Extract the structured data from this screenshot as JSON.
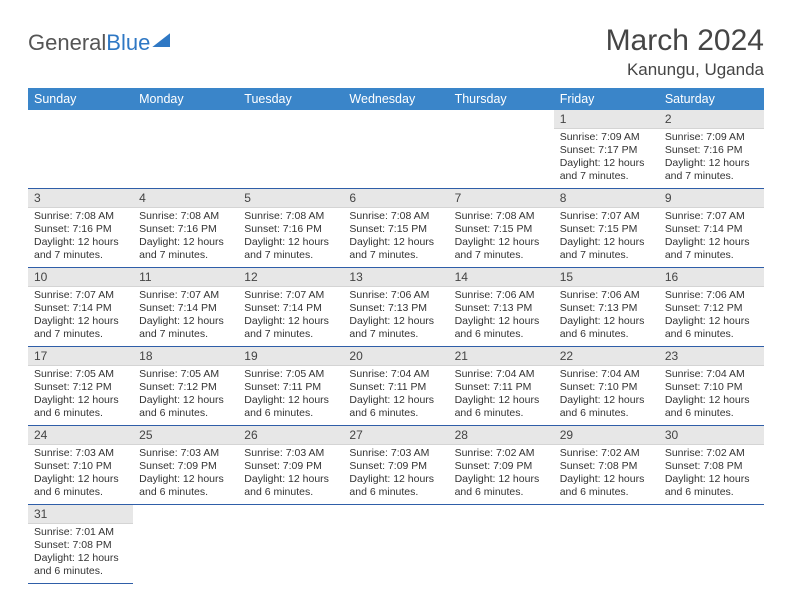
{
  "logo": {
    "part1": "General",
    "part2": "Blue"
  },
  "title": "March 2024",
  "location": "Kanungu, Uganda",
  "colors": {
    "header_bg": "#3a85c9",
    "header_text": "#ffffff",
    "daynum_bg": "#e7e7e7",
    "row_border": "#2f5ea8",
    "text": "#333333",
    "title_text": "#454545"
  },
  "weekdays": [
    "Sunday",
    "Monday",
    "Tuesday",
    "Wednesday",
    "Thursday",
    "Friday",
    "Saturday"
  ],
  "weeks": [
    [
      null,
      null,
      null,
      null,
      null,
      {
        "n": "1",
        "sr": "7:09 AM",
        "ss": "7:17 PM",
        "dl": "12 hours and 7 minutes."
      },
      {
        "n": "2",
        "sr": "7:09 AM",
        "ss": "7:16 PM",
        "dl": "12 hours and 7 minutes."
      }
    ],
    [
      {
        "n": "3",
        "sr": "7:08 AM",
        "ss": "7:16 PM",
        "dl": "12 hours and 7 minutes."
      },
      {
        "n": "4",
        "sr": "7:08 AM",
        "ss": "7:16 PM",
        "dl": "12 hours and 7 minutes."
      },
      {
        "n": "5",
        "sr": "7:08 AM",
        "ss": "7:16 PM",
        "dl": "12 hours and 7 minutes."
      },
      {
        "n": "6",
        "sr": "7:08 AM",
        "ss": "7:15 PM",
        "dl": "12 hours and 7 minutes."
      },
      {
        "n": "7",
        "sr": "7:08 AM",
        "ss": "7:15 PM",
        "dl": "12 hours and 7 minutes."
      },
      {
        "n": "8",
        "sr": "7:07 AM",
        "ss": "7:15 PM",
        "dl": "12 hours and 7 minutes."
      },
      {
        "n": "9",
        "sr": "7:07 AM",
        "ss": "7:14 PM",
        "dl": "12 hours and 7 minutes."
      }
    ],
    [
      {
        "n": "10",
        "sr": "7:07 AM",
        "ss": "7:14 PM",
        "dl": "12 hours and 7 minutes."
      },
      {
        "n": "11",
        "sr": "7:07 AM",
        "ss": "7:14 PM",
        "dl": "12 hours and 7 minutes."
      },
      {
        "n": "12",
        "sr": "7:07 AM",
        "ss": "7:14 PM",
        "dl": "12 hours and 7 minutes."
      },
      {
        "n": "13",
        "sr": "7:06 AM",
        "ss": "7:13 PM",
        "dl": "12 hours and 7 minutes."
      },
      {
        "n": "14",
        "sr": "7:06 AM",
        "ss": "7:13 PM",
        "dl": "12 hours and 6 minutes."
      },
      {
        "n": "15",
        "sr": "7:06 AM",
        "ss": "7:13 PM",
        "dl": "12 hours and 6 minutes."
      },
      {
        "n": "16",
        "sr": "7:06 AM",
        "ss": "7:12 PM",
        "dl": "12 hours and 6 minutes."
      }
    ],
    [
      {
        "n": "17",
        "sr": "7:05 AM",
        "ss": "7:12 PM",
        "dl": "12 hours and 6 minutes."
      },
      {
        "n": "18",
        "sr": "7:05 AM",
        "ss": "7:12 PM",
        "dl": "12 hours and 6 minutes."
      },
      {
        "n": "19",
        "sr": "7:05 AM",
        "ss": "7:11 PM",
        "dl": "12 hours and 6 minutes."
      },
      {
        "n": "20",
        "sr": "7:04 AM",
        "ss": "7:11 PM",
        "dl": "12 hours and 6 minutes."
      },
      {
        "n": "21",
        "sr": "7:04 AM",
        "ss": "7:11 PM",
        "dl": "12 hours and 6 minutes."
      },
      {
        "n": "22",
        "sr": "7:04 AM",
        "ss": "7:10 PM",
        "dl": "12 hours and 6 minutes."
      },
      {
        "n": "23",
        "sr": "7:04 AM",
        "ss": "7:10 PM",
        "dl": "12 hours and 6 minutes."
      }
    ],
    [
      {
        "n": "24",
        "sr": "7:03 AM",
        "ss": "7:10 PM",
        "dl": "12 hours and 6 minutes."
      },
      {
        "n": "25",
        "sr": "7:03 AM",
        "ss": "7:09 PM",
        "dl": "12 hours and 6 minutes."
      },
      {
        "n": "26",
        "sr": "7:03 AM",
        "ss": "7:09 PM",
        "dl": "12 hours and 6 minutes."
      },
      {
        "n": "27",
        "sr": "7:03 AM",
        "ss": "7:09 PM",
        "dl": "12 hours and 6 minutes."
      },
      {
        "n": "28",
        "sr": "7:02 AM",
        "ss": "7:09 PM",
        "dl": "12 hours and 6 minutes."
      },
      {
        "n": "29",
        "sr": "7:02 AM",
        "ss": "7:08 PM",
        "dl": "12 hours and 6 minutes."
      },
      {
        "n": "30",
        "sr": "7:02 AM",
        "ss": "7:08 PM",
        "dl": "12 hours and 6 minutes."
      }
    ],
    [
      {
        "n": "31",
        "sr": "7:01 AM",
        "ss": "7:08 PM",
        "dl": "12 hours and 6 minutes."
      },
      null,
      null,
      null,
      null,
      null,
      null
    ]
  ],
  "labels": {
    "sunrise": "Sunrise: ",
    "sunset": "Sunset: ",
    "daylight": "Daylight: "
  }
}
